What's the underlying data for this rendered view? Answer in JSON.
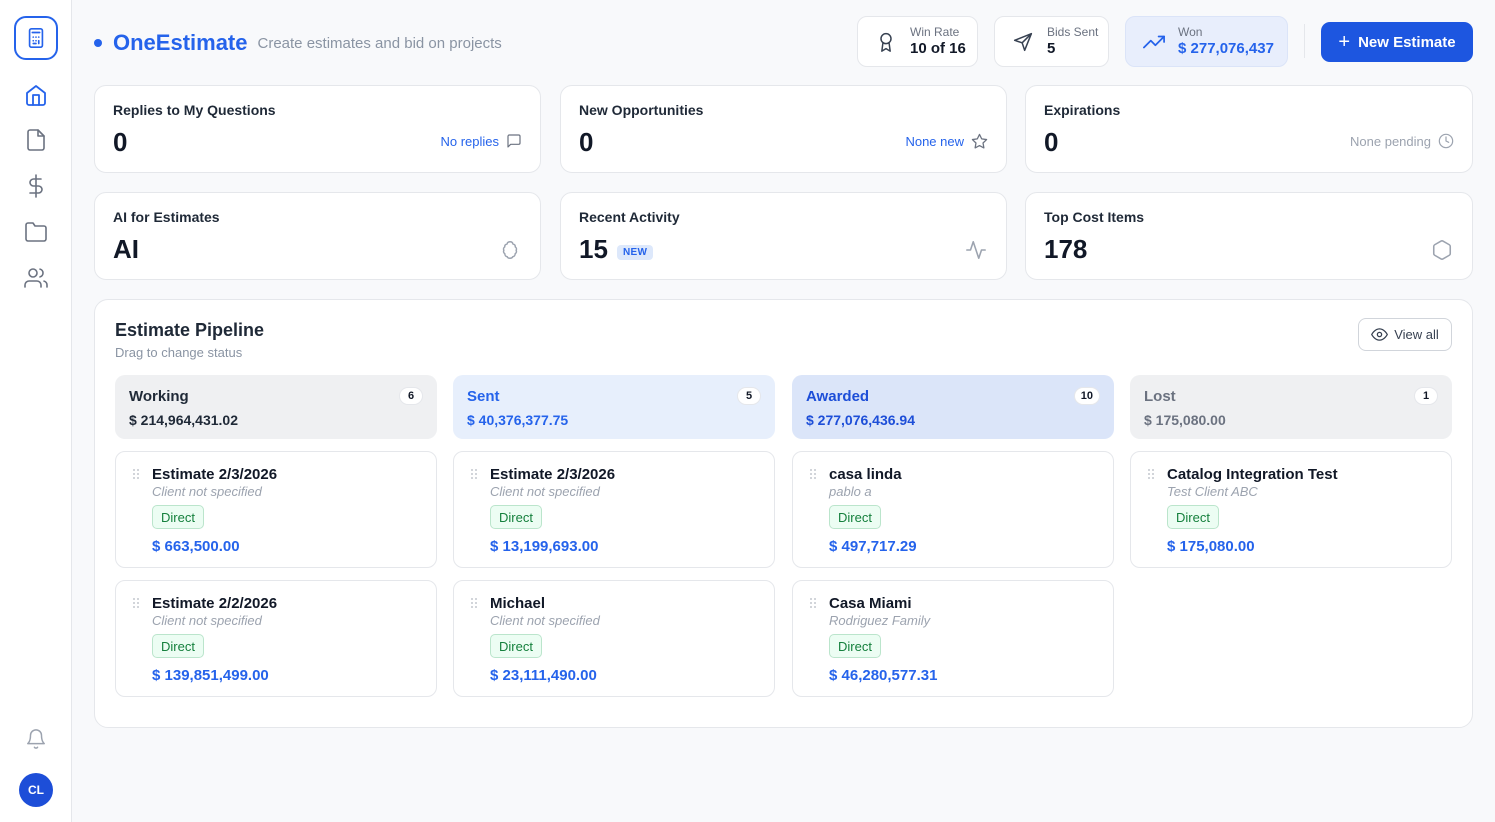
{
  "app": {
    "name": "OneEstimate",
    "subtitle": "Create estimates and bid on projects"
  },
  "user": {
    "initials": "CL"
  },
  "sidebar": {
    "items": [
      {
        "icon": "home-icon"
      },
      {
        "icon": "document-icon"
      },
      {
        "icon": "dollar-icon"
      },
      {
        "icon": "folder-icon"
      },
      {
        "icon": "users-icon"
      }
    ]
  },
  "header": {
    "stats": [
      {
        "label": "Win Rate",
        "value": "10 of 16",
        "icon": "award-icon"
      },
      {
        "label": "Bids Sent",
        "value": "5",
        "icon": "send-icon"
      },
      {
        "label": "Won",
        "value": "$ 277,076,437",
        "icon": "trending-up-icon"
      }
    ],
    "new_button": "New Estimate"
  },
  "metrics": [
    {
      "title": "Replies to My Questions",
      "value": "0",
      "meta": "No replies",
      "icon": "message-icon"
    },
    {
      "title": "New Opportunities",
      "value": "0",
      "meta": "None new",
      "icon": "star-icon"
    },
    {
      "title": "Expirations",
      "value": "0",
      "meta": "None pending",
      "icon": "clock-icon"
    },
    {
      "title": "AI for Estimates",
      "value": "AI",
      "icon": "brain-icon"
    },
    {
      "title": "Recent Activity",
      "value": "15",
      "badge": "NEW",
      "icon": "activity-icon"
    },
    {
      "title": "Top Cost Items",
      "value": "178",
      "icon": "hexagon-icon"
    }
  ],
  "pipeline": {
    "title": "Estimate Pipeline",
    "subtitle": "Drag to change status",
    "view_all": "View all",
    "columns": [
      {
        "name": "Working",
        "count": "6",
        "total": "$ 214,964,431.02",
        "cards": [
          {
            "name": "Estimate 2/3/2026",
            "client": "Client not specified",
            "tag": "Direct",
            "amount": "$ 663,500.00"
          },
          {
            "name": "Estimate 2/2/2026",
            "client": "Client not specified",
            "tag": "Direct",
            "amount": "$ 139,851,499.00"
          }
        ]
      },
      {
        "name": "Sent",
        "count": "5",
        "total": "$ 40,376,377.75",
        "cards": [
          {
            "name": "Estimate 2/3/2026",
            "client": "Client not specified",
            "tag": "Direct",
            "amount": "$ 13,199,693.00"
          },
          {
            "name": "Michael",
            "client": "Client not specified",
            "tag": "Direct",
            "amount": "$ 23,111,490.00"
          }
        ]
      },
      {
        "name": "Awarded",
        "count": "10",
        "total": "$ 277,076,436.94",
        "cards": [
          {
            "name": "casa linda",
            "client": "pablo a",
            "tag": "Direct",
            "amount": "$ 497,717.29"
          },
          {
            "name": "Casa Miami",
            "client": "Rodriguez Family",
            "tag": "Direct",
            "amount": "$ 46,280,577.31"
          }
        ]
      },
      {
        "name": "Lost",
        "count": "1",
        "total": "$ 175,080.00",
        "cards": [
          {
            "name": "Catalog Integration Test",
            "client": "Test Client ABC",
            "tag": "Direct",
            "amount": "$ 175,080.00"
          }
        ]
      }
    ]
  }
}
